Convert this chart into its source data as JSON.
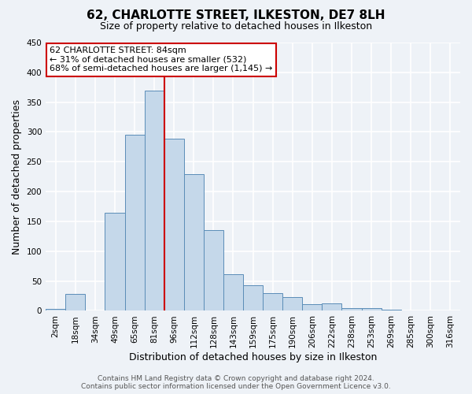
{
  "title": "62, CHARLOTTE STREET, ILKESTON, DE7 8LH",
  "subtitle": "Size of property relative to detached houses in Ilkeston",
  "xlabel": "Distribution of detached houses by size in Ilkeston",
  "ylabel": "Number of detached properties",
  "bar_labels": [
    "2sqm",
    "18sqm",
    "34sqm",
    "49sqm",
    "65sqm",
    "81sqm",
    "96sqm",
    "112sqm",
    "128sqm",
    "143sqm",
    "159sqm",
    "175sqm",
    "190sqm",
    "206sqm",
    "222sqm",
    "238sqm",
    "253sqm",
    "269sqm",
    "285sqm",
    "300sqm",
    "316sqm"
  ],
  "bar_values": [
    3,
    29,
    0,
    165,
    295,
    370,
    289,
    229,
    135,
    61,
    43,
    30,
    23,
    11,
    12,
    5,
    4,
    2,
    0,
    0,
    0
  ],
  "bar_color": "#c5d8ea",
  "bar_edge_color": "#5b8db8",
  "vline_color": "#cc0000",
  "annotation_title": "62 CHARLOTTE STREET: 84sqm",
  "annotation_line1": "← 31% of detached houses are smaller (532)",
  "annotation_line2": "68% of semi-detached houses are larger (1,145) →",
  "annotation_box_facecolor": "#ffffff",
  "annotation_box_edgecolor": "#cc0000",
  "ylim": [
    0,
    450
  ],
  "yticks": [
    0,
    50,
    100,
    150,
    200,
    250,
    300,
    350,
    400,
    450
  ],
  "footer1": "Contains HM Land Registry data © Crown copyright and database right 2024.",
  "footer2": "Contains public sector information licensed under the Open Government Licence v3.0.",
  "background_color": "#eef2f7",
  "grid_color": "#ffffff",
  "title_fontsize": 11,
  "subtitle_fontsize": 9,
  "axis_label_fontsize": 9,
  "tick_fontsize": 7.5,
  "footer_fontsize": 6.5,
  "annotation_fontsize": 8
}
